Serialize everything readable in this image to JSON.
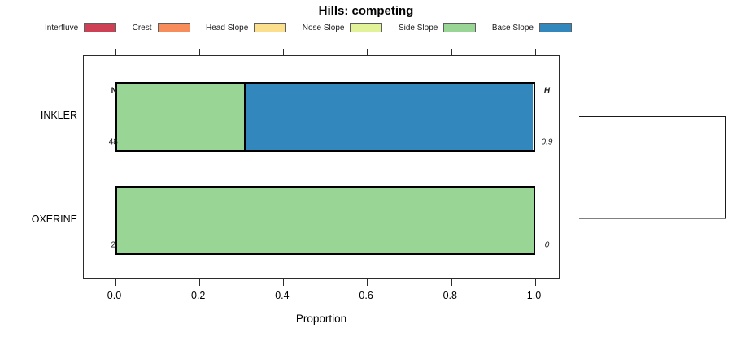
{
  "title": "Hills: competing",
  "chart_data": {
    "type": "bar",
    "stacked": true,
    "orientation": "horizontal",
    "title": "Hills: competing",
    "xlabel": "Proportion",
    "xlim": [
      0,
      1
    ],
    "grid": false,
    "legend_position": "top",
    "x_ticks": [
      {
        "label": "0.0",
        "value": 0.0
      },
      {
        "label": "0.2",
        "value": 0.2
      },
      {
        "label": "0.4",
        "value": 0.4
      },
      {
        "label": "0.6",
        "value": 0.6
      },
      {
        "label": "0.8",
        "value": 0.8
      },
      {
        "label": "1.0",
        "value": 1.0
      }
    ],
    "categories": [
      "INKLER",
      "OXERINE"
    ],
    "series": [
      {
        "name": "Interfluve",
        "color": "#CE4053",
        "values": [
          0,
          0
        ]
      },
      {
        "name": "Crest",
        "color": "#F78D5A",
        "values": [
          0,
          0
        ]
      },
      {
        "name": "Head Slope",
        "color": "#FBDF8C",
        "values": [
          0,
          0
        ]
      },
      {
        "name": "Nose Slope",
        "color": "#E2F298",
        "values": [
          0,
          0
        ]
      },
      {
        "name": "Side Slope",
        "color": "#99D594",
        "values": [
          0.31,
          1.0
        ]
      },
      {
        "name": "Base Slope",
        "color": "#3288BD",
        "values": [
          0.69,
          0
        ]
      }
    ],
    "annotations": {
      "count_header": "N",
      "entropy_header": "H",
      "counts": [
        "48",
        "2"
      ],
      "entropy": [
        "0.9",
        "0"
      ]
    },
    "right_dendrogram": {
      "links_rows": [
        "INKLER",
        "OXERINE"
      ]
    }
  }
}
